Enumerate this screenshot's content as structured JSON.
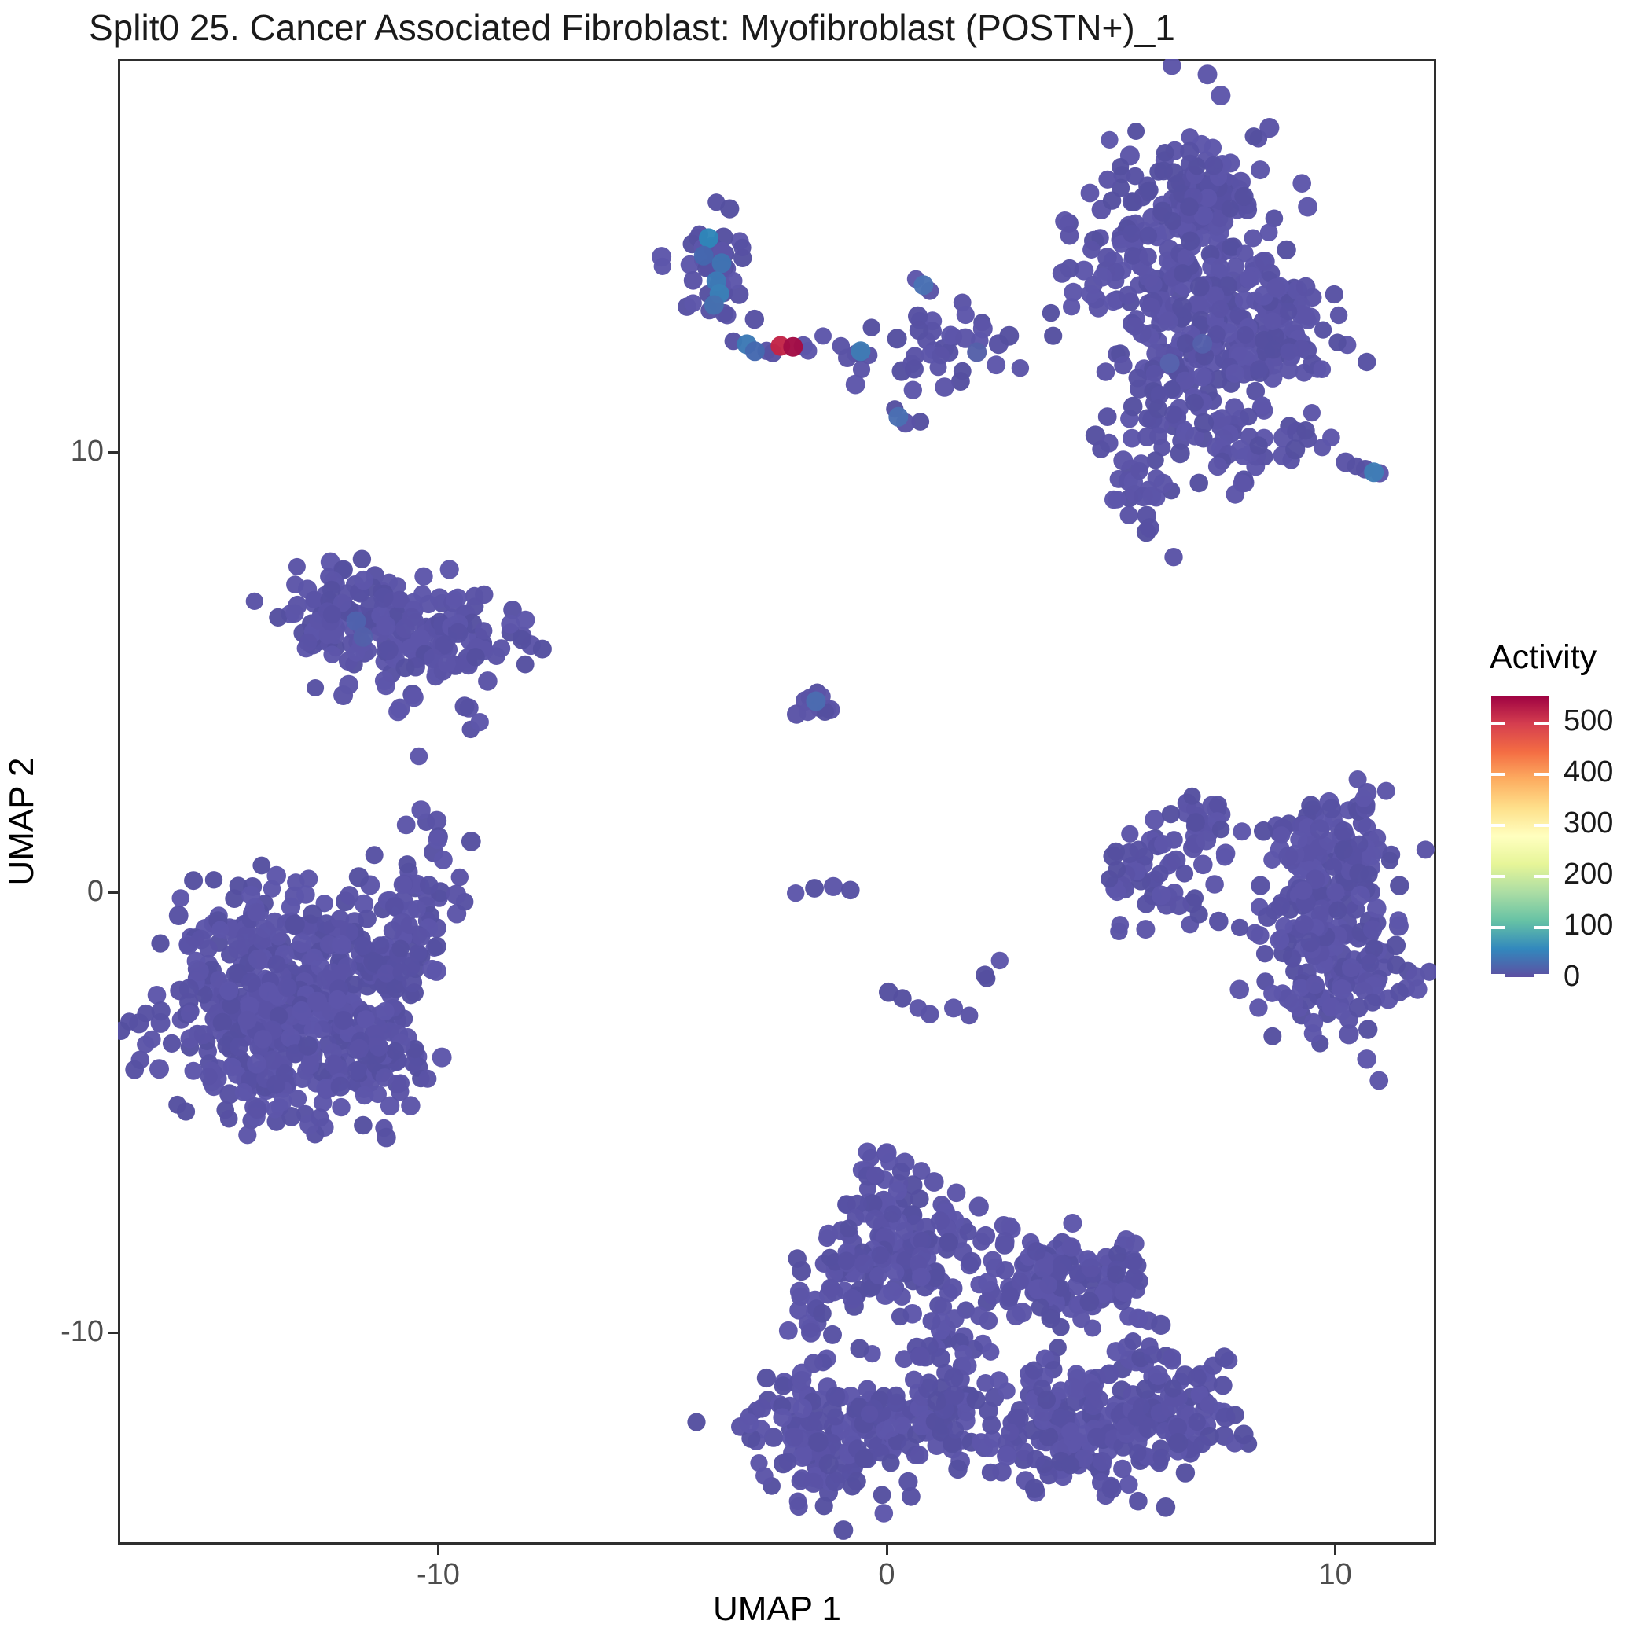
{
  "title": "Split0 25. Cancer Associated Fibroblast: Myofibroblast (POSTN+)_1",
  "axes": {
    "x_label": "UMAP 1",
    "y_label": "UMAP 2",
    "x_ticks": [
      {
        "label": "-10",
        "v": -10
      },
      {
        "label": "0",
        "v": 0
      },
      {
        "label": "10",
        "v": 10
      }
    ],
    "y_ticks": [
      {
        "label": "10",
        "v": 10
      },
      {
        "label": "0",
        "v": 0
      },
      {
        "label": "-10",
        "v": -10
      }
    ]
  },
  "legend": {
    "title": "Activity",
    "vmax": 550,
    "ticks": [
      {
        "label": "500",
        "v": 500
      },
      {
        "label": "400",
        "v": 400
      },
      {
        "label": "300",
        "v": 300
      },
      {
        "label": "200",
        "v": 200
      },
      {
        "label": "100",
        "v": 100
      },
      {
        "label": "0",
        "v": 0
      }
    ],
    "gradient_colors_bottom_to_top": [
      "#5e4fa2",
      "#3288bd",
      "#66c2a5",
      "#abdda4",
      "#e6f598",
      "#ffffbf",
      "#fee08b",
      "#fdae61",
      "#f46d43",
      "#d53e4f",
      "#9e0142"
    ]
  },
  "chart_data": {
    "type": "scatter",
    "title": "Split0 25. Cancer Associated Fibroblast: Myofibroblast (POSTN+)_1",
    "xlabel": "UMAP 1",
    "ylabel": "UMAP 2",
    "xlim": [
      -17.14,
      12.25
    ],
    "ylim": [
      -14.82,
      18.93
    ],
    "grid": false,
    "legend_position": "right",
    "color_scale": {
      "name": "Spectral (reversed)",
      "label": "Activity",
      "domain": [
        0,
        550
      ],
      "tick_values": [
        0,
        100,
        200,
        300,
        400,
        500
      ]
    },
    "point_color_default": "#5a53a6",
    "point_color_variants": [
      "#5a53a6",
      "#5751a3",
      "#5d56aa",
      "#554fa0",
      "#5c55a8"
    ],
    "point_radius_px": 11,
    "clusters": [
      {
        "name": "top-right-main-a",
        "cx": 7.05,
        "cy": 16.16,
        "sx": 0.8,
        "sy": 0.8,
        "n": 90
      },
      {
        "name": "top-right-main-b",
        "cx": 6.17,
        "cy": 14.38,
        "sx": 1.0,
        "sy": 1.0,
        "n": 130
      },
      {
        "name": "top-right-main-c",
        "cx": 7.57,
        "cy": 13.13,
        "sx": 1.05,
        "sy": 0.8,
        "n": 120
      },
      {
        "name": "top-right-arm",
        "cx": 8.71,
        "cy": 12.77,
        "sx": 0.7,
        "sy": 0.55,
        "n": 60
      },
      {
        "name": "top-right-lower",
        "cx": 6.87,
        "cy": 11.34,
        "sx": 0.9,
        "sy": 0.7,
        "n": 85
      },
      {
        "name": "top-right-foot",
        "cx": 5.61,
        "cy": 9.2,
        "sx": 0.55,
        "sy": 0.5,
        "n": 28
      },
      {
        "name": "top-right-knot",
        "cx": 9.15,
        "cy": 10.27,
        "sx": 0.35,
        "sy": 0.3,
        "n": 10
      },
      {
        "name": "top-right-bridge",
        "cx": 7.75,
        "cy": 10.0,
        "sx": 0.4,
        "sy": 0.35,
        "n": 18
      },
      {
        "name": "top-teal-cluster",
        "cx": -3.85,
        "cy": 14.2,
        "sx": 0.45,
        "sy": 0.85,
        "n": 40
      },
      {
        "name": "top-mid-cluster",
        "cx": 1.35,
        "cy": 12.4,
        "sx": 0.9,
        "sy": 0.55,
        "n": 40
      },
      {
        "name": "left-upper-a",
        "cx": -12.23,
        "cy": 6.25,
        "sx": 0.75,
        "sy": 0.55,
        "n": 65
      },
      {
        "name": "left-upper-b",
        "cx": -10.66,
        "cy": 5.98,
        "sx": 0.95,
        "sy": 0.6,
        "n": 95
      },
      {
        "name": "left-upper-c",
        "cx": -9.39,
        "cy": 5.66,
        "sx": 0.6,
        "sy": 0.45,
        "n": 45
      },
      {
        "name": "left-upper-tail1",
        "cx": -10.92,
        "cy": 4.77,
        "sx": 0.3,
        "sy": 0.45,
        "n": 8
      },
      {
        "name": "left-upper-tail2",
        "cx": -9.25,
        "cy": 4.2,
        "sx": 0.3,
        "sy": 0.3,
        "n": 4
      },
      {
        "name": "left-upper-string",
        "cx": -10.18,
        "cy": 1.88,
        "sx": 0.18,
        "sy": 0.6,
        "n": 6
      },
      {
        "name": "left-big-a",
        "cx": -13.63,
        "cy": -0.8,
        "sx": 1.0,
        "sy": 0.7,
        "n": 90
      },
      {
        "name": "left-big-b",
        "cx": -14.69,
        "cy": -2.45,
        "sx": 0.95,
        "sy": 0.85,
        "n": 130
      },
      {
        "name": "left-big-c",
        "cx": -12.41,
        "cy": -2.27,
        "sx": 1.05,
        "sy": 0.85,
        "n": 130
      },
      {
        "name": "left-big-d",
        "cx": -13.6,
        "cy": -3.88,
        "sx": 1.0,
        "sy": 0.8,
        "n": 120
      },
      {
        "name": "left-big-e",
        "cx": -11.67,
        "cy": -3.7,
        "sx": 0.8,
        "sy": 0.7,
        "n": 75
      },
      {
        "name": "left-big-arm",
        "cx": -10.3,
        "cy": 0.13,
        "sx": 0.5,
        "sy": 0.5,
        "n": 30
      },
      {
        "name": "left-big-neck",
        "cx": -10.97,
        "cy": -1.25,
        "sx": 0.6,
        "sy": 0.5,
        "n": 45
      },
      {
        "name": "ring-top-left",
        "cx": 6.8,
        "cy": 1.55,
        "sx": 0.45,
        "sy": 0.4,
        "n": 28
      },
      {
        "name": "ring-right-upper",
        "cx": 10.11,
        "cy": 0.89,
        "sx": 0.75,
        "sy": 0.6,
        "n": 110
      },
      {
        "name": "ring-right-lower",
        "cx": 10.03,
        "cy": -1.7,
        "sx": 0.85,
        "sy": 0.75,
        "n": 130
      },
      {
        "name": "ring-left",
        "cx": 5.82,
        "cy": 0.23,
        "sx": 0.5,
        "sy": 0.6,
        "n": 42
      },
      {
        "name": "ring-connector",
        "cx": 9.36,
        "cy": -0.18,
        "sx": 0.45,
        "sy": 0.55,
        "n": 25
      },
      {
        "name": "bottom-top-blob",
        "cx": 0.04,
        "cy": -6.88,
        "sx": 0.5,
        "sy": 0.55,
        "n": 40
      },
      {
        "name": "bottom-upper-mid",
        "cx": 0.6,
        "cy": -8.16,
        "sx": 0.65,
        "sy": 0.6,
        "n": 75
      },
      {
        "name": "bottom-left-mid",
        "cx": -0.81,
        "cy": -8.52,
        "sx": 0.6,
        "sy": 0.45,
        "n": 50
      },
      {
        "name": "bottom-left-small",
        "cx": -1.68,
        "cy": -9.52,
        "sx": 0.3,
        "sy": 0.4,
        "n": 14
      },
      {
        "name": "bottom-right-mid",
        "cx": 3.4,
        "cy": -8.8,
        "sx": 0.75,
        "sy": 0.55,
        "n": 80
      },
      {
        "name": "bottom-bridge",
        "cx": 1.44,
        "cy": -10.09,
        "sx": 0.9,
        "sy": 0.55,
        "n": 30
      },
      {
        "name": "bottom-left-dense",
        "cx": -0.98,
        "cy": -12.27,
        "sx": 1.0,
        "sy": 0.75,
        "n": 170
      },
      {
        "name": "bottom-center",
        "cx": 1.12,
        "cy": -11.73,
        "sx": 0.6,
        "sy": 0.6,
        "n": 55
      },
      {
        "name": "bottom-right-dense",
        "cx": 4.45,
        "cy": -12.09,
        "sx": 1.1,
        "sy": 0.8,
        "n": 180
      },
      {
        "name": "bottom-right-upper",
        "cx": 5.15,
        "cy": -8.7,
        "sx": 0.5,
        "sy": 0.5,
        "n": 40
      },
      {
        "name": "bottom-far-right",
        "cx": 6.55,
        "cy": -11.55,
        "sx": 0.65,
        "sy": 0.8,
        "n": 80
      },
      {
        "name": "bottom-spur",
        "cx": 2.4,
        "cy": -7.7,
        "sx": 0.3,
        "sy": 0.3,
        "n": 6
      },
      {
        "name": "center-small-blob",
        "cx": -1.6,
        "cy": 4.3,
        "sx": 0.22,
        "sy": 0.2,
        "n": 6
      }
    ],
    "single_points": [
      [
        3.66,
        13.16
      ],
      [
        4.12,
        13.3
      ],
      [
        4.54,
        13.59
      ],
      [
        3.71,
        12.64
      ],
      [
        10.23,
        9.77
      ],
      [
        10.46,
        9.68
      ],
      [
        10.67,
        9.61
      ],
      [
        10.99,
        9.52
      ],
      [
        -2.68,
        12.3
      ],
      [
        -2.54,
        12.25
      ],
      [
        -1.86,
        12.41
      ],
      [
        -1.75,
        12.3
      ],
      [
        -3.42,
        12.52
      ],
      [
        -1.02,
        12.41
      ],
      [
        -0.88,
        12.14
      ],
      [
        -0.4,
        12.2
      ],
      [
        0.65,
        13.93
      ],
      [
        0.96,
        13.66
      ],
      [
        0.18,
        10.98
      ],
      [
        0.42,
        10.66
      ],
      [
        -2.03,
        -0.02
      ],
      [
        -1.61,
        0.09
      ],
      [
        -1.19,
        0.13
      ],
      [
        -0.81,
        0.05
      ],
      [
        0.04,
        -2.27
      ],
      [
        0.35,
        -2.41
      ],
      [
        0.7,
        -2.63
      ],
      [
        0.96,
        -2.77
      ],
      [
        1.49,
        -2.63
      ],
      [
        1.84,
        -2.8
      ],
      [
        2.23,
        -1.96
      ],
      [
        2.52,
        -1.55
      ],
      [
        2.19,
        -1.88
      ],
      [
        7.45,
        1.43
      ],
      [
        7.92,
        1.38
      ],
      [
        8.4,
        1.39
      ],
      [
        8.8,
        1.3
      ],
      [
        9.19,
        1.2
      ],
      [
        6.52,
        -0.3
      ],
      [
        6.96,
        -0.5
      ],
      [
        7.4,
        -0.66
      ],
      [
        7.87,
        -0.8
      ],
      [
        8.32,
        -0.98
      ],
      [
        8.76,
        -1.09
      ],
      [
        7.05,
        0.63
      ],
      [
        7.31,
        0.18
      ],
      [
        6.87,
        -0.13
      ],
      [
        7.54,
        0.8
      ],
      [
        -10.43,
        3.09
      ],
      [
        4.59,
        -9.9
      ],
      [
        4.52,
        -9.3
      ],
      [
        -1.72,
        4.42
      ],
      [
        -1.5,
        4.2
      ],
      [
        -1.76,
        4.1
      ],
      [
        -1.45,
        4.45
      ]
    ],
    "special_points": [
      {
        "x": -3.97,
        "y": 14.86,
        "color": "#2e86b9"
      },
      {
        "x": -4.08,
        "y": 14.46,
        "color": "#4467ae"
      },
      {
        "x": -3.68,
        "y": 14.29,
        "color": "#3f74b3"
      },
      {
        "x": -3.8,
        "y": 13.88,
        "color": "#3c7ab6"
      },
      {
        "x": -3.73,
        "y": 13.6,
        "color": "#3a80b7"
      },
      {
        "x": -3.85,
        "y": 13.34,
        "color": "#4571b0"
      },
      {
        "x": -3.12,
        "y": 12.45,
        "color": "#3c79b5"
      },
      {
        "x": -2.94,
        "y": 12.29,
        "color": "#4468af"
      },
      {
        "x": -2.37,
        "y": 12.41,
        "color": "#c22447"
      },
      {
        "x": -2.09,
        "y": 12.39,
        "color": "#a30c45"
      },
      {
        "x": -0.58,
        "y": 12.29,
        "color": "#3f7cb5"
      },
      {
        "x": 0.82,
        "y": 13.79,
        "color": "#4a72b4"
      },
      {
        "x": 2.01,
        "y": 12.27,
        "color": "#5560a9"
      },
      {
        "x": 0.26,
        "y": 10.8,
        "color": "#4a6fb3"
      },
      {
        "x": 10.86,
        "y": 9.54,
        "color": "#3f7db6"
      },
      {
        "x": -1.58,
        "y": 4.34,
        "color": "#4b6cb1"
      },
      {
        "x": -11.83,
        "y": 6.16,
        "color": "#4f62ad"
      },
      {
        "x": -11.67,
        "y": 5.8,
        "color": "#5360aa"
      },
      {
        "x": 7.04,
        "y": 12.46,
        "color": "#5560ab"
      },
      {
        "x": 6.31,
        "y": 12.02,
        "color": "#5763ad"
      }
    ]
  }
}
